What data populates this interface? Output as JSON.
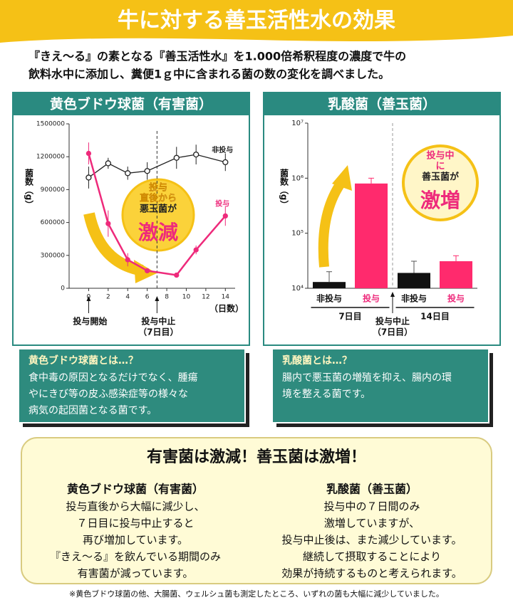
{
  "header": {
    "title": "牛に対する善玉活性水の効果"
  },
  "intro": [
    "『きえ～る』の素となる『善玉活性水』を1.000倍希釈程度の濃度で牛の",
    "飲料水中に添加し、糞便1ｇ中に含まれる菌の数の変化を調べました。"
  ],
  "chart_data": [
    {
      "type": "line",
      "title": "黄色ブドウ球菌（有害菌）",
      "ylabel": "菌数（g）",
      "xlabel": "（日数）",
      "x": [
        0,
        2,
        4,
        6,
        9,
        11,
        14
      ],
      "series": [
        {
          "name": "非投与",
          "color": "#222222",
          "values": [
            1010000,
            1140000,
            1050000,
            1070000,
            1190000,
            1220000,
            1150000
          ],
          "errors": [
            100000,
            50000,
            60000,
            80000,
            100000,
            90000,
            80000
          ]
        },
        {
          "name": "投与",
          "color": "#ee2a7b",
          "values": [
            1230000,
            590000,
            260000,
            160000,
            120000,
            350000,
            660000
          ],
          "errors": [
            100000,
            120000,
            60000,
            20000,
            20000,
            40000,
            90000
          ]
        }
      ],
      "xlim": [
        -2,
        15
      ],
      "xticks": [
        0,
        2,
        4,
        6,
        8,
        10,
        12,
        14
      ],
      "ylim": [
        0,
        1500000
      ],
      "yticks": [
        0,
        300000,
        600000,
        900000,
        1200000,
        1500000
      ],
      "annotations": [
        {
          "x": 0,
          "lines": [
            "投与開始"
          ]
        },
        {
          "x": 7,
          "lines": [
            "投与中止",
            "（7日目）"
          ]
        }
      ],
      "callout": [
        "投与",
        "直後から",
        "悪玉菌が",
        "激減"
      ]
    },
    {
      "type": "bar",
      "title": "乳酸菌（善玉菌）",
      "ylabel": "菌数（g）",
      "yscale": "log",
      "categories": [
        "7日目",
        "14日目"
      ],
      "series": [
        {
          "name": "非投与",
          "color": "#111111",
          "values": [
            13000,
            19000
          ],
          "errors": [
            7000,
            12000
          ]
        },
        {
          "name": "投与",
          "color": "#ff2a6d",
          "values": [
            800000,
            31000
          ],
          "errors": [
            200000,
            8000
          ]
        }
      ],
      "ylim": [
        10000,
        10000000
      ],
      "yticks": [
        {
          "value": 10000,
          "label": "10⁴"
        },
        {
          "value": 100000,
          "label": "10⁵"
        },
        {
          "value": 1000000,
          "label": "10⁶"
        },
        {
          "value": 10000000,
          "label": "10⁷"
        }
      ],
      "annotations": [
        {
          "lines": [
            "投与中止",
            "（7日目）"
          ]
        }
      ],
      "callout": [
        "投与中",
        "に",
        "善玉菌が",
        "激増"
      ]
    }
  ],
  "info_boxes": [
    {
      "title": "黄色ブドウ球菌とは…？",
      "lines": [
        "食中毒の原因となるだけでなく、腫瘍",
        "やにきび等の皮ふ感染症等の様々な",
        "病気の起因菌となる菌です。"
      ]
    },
    {
      "title": "乳酸菌とは…？",
      "lines": [
        "腸内で悪玉菌の増殖を抑え、腸内の環",
        "境を整える菌です。"
      ]
    }
  ],
  "summary": {
    "title": "有害菌は激減！善玉菌は激増！",
    "columns": [
      {
        "title": "黄色ブドウ球菌（有害菌）",
        "lines": [
          "投与直後から大幅に減少し、",
          "７日目に投与中止すると",
          "再び増加しています。",
          "『きえ～る』を飲んでいる期間のみ",
          "有害菌が減っています。"
        ]
      },
      {
        "title": "乳酸菌（善玉菌）",
        "lines": [
          "投与中の７日間のみ",
          "激増していますが、",
          "投与中止後は、また減少しています。",
          "継続して摂取することにより",
          "効果が持続するものと考えられます。"
        ]
      }
    ]
  },
  "footnote": "※黄色ブドウ球菌の他、大腸菌、ウェルシュ菌も測定したところ、いずれの菌も大幅に減少していました。"
}
